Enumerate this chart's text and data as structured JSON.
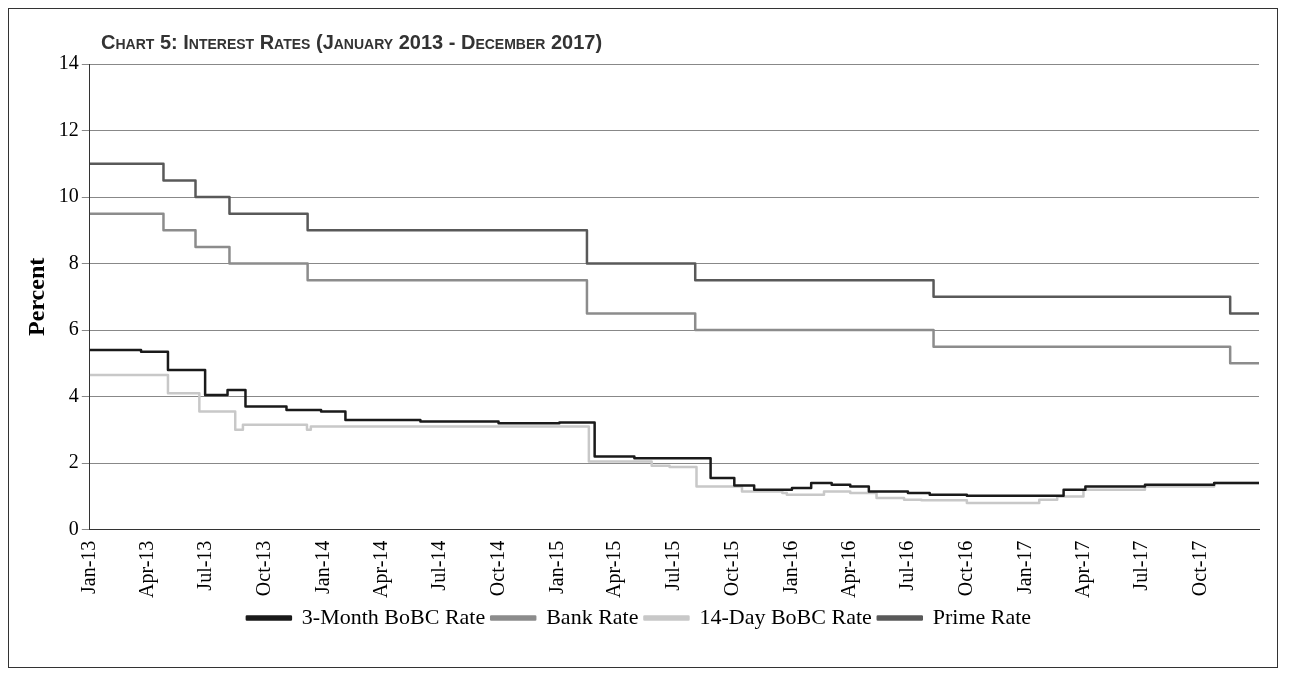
{
  "chart_data": {
    "type": "step",
    "title": "Chart 5: Interest Rates (January 2013 - December 2017)",
    "ylabel": "Percent",
    "xlim": [
      "2013-01-01",
      "2017-12-31"
    ],
    "xticks": [
      {
        "value": "2013-01-01",
        "label": "Jan-13"
      },
      {
        "value": "2013-04-01",
        "label": "Apr-13"
      },
      {
        "value": "2013-07-01",
        "label": "Jul-13"
      },
      {
        "value": "2013-10-01",
        "label": "Oct-13"
      },
      {
        "value": "2014-01-01",
        "label": "Jan-14"
      },
      {
        "value": "2014-04-01",
        "label": "Apr-14"
      },
      {
        "value": "2014-07-01",
        "label": "Jul-14"
      },
      {
        "value": "2014-10-01",
        "label": "Oct-14"
      },
      {
        "value": "2015-01-01",
        "label": "Jan-15"
      },
      {
        "value": "2015-04-01",
        "label": "Apr-15"
      },
      {
        "value": "2015-07-01",
        "label": "Jul-15"
      },
      {
        "value": "2015-10-01",
        "label": "Oct-15"
      },
      {
        "value": "2016-01-01",
        "label": "Jan-16"
      },
      {
        "value": "2016-04-01",
        "label": "Apr-16"
      },
      {
        "value": "2016-07-01",
        "label": "Jul-16"
      },
      {
        "value": "2016-10-01",
        "label": "Oct-16"
      },
      {
        "value": "2017-01-01",
        "label": "Jan-17"
      },
      {
        "value": "2017-04-01",
        "label": "Apr-17"
      },
      {
        "value": "2017-07-01",
        "label": "Jul-17"
      },
      {
        "value": "2017-10-01",
        "label": "Oct-17"
      }
    ],
    "ylim": [
      0,
      14
    ],
    "yticks": [
      0,
      2,
      4,
      6,
      8,
      10,
      12,
      14
    ],
    "grid": "y",
    "legend": "bottom",
    "series": [
      {
        "name": "3-Month BoBC Rate",
        "color": "#1a1a1a",
        "x": [
          "2013-01-01",
          "2013-03-22",
          "2013-05-03",
          "2013-06-30",
          "2013-08-04",
          "2013-09-01",
          "2013-11-04",
          "2013-12-28",
          "2014-02-04",
          "2014-06-01",
          "2014-10-01",
          "2015-01-04",
          "2015-02-28",
          "2015-05-01",
          "2015-08-28",
          "2015-10-04",
          "2015-11-04",
          "2016-01-02",
          "2016-02-01",
          "2016-03-04",
          "2016-04-02",
          "2016-05-01",
          "2016-07-01",
          "2016-08-04",
          "2016-10-01",
          "2017-03-01",
          "2017-04-04",
          "2017-07-06",
          "2017-10-22",
          "2017-12-31"
        ],
        "values": [
          5.4,
          5.35,
          4.8,
          4.05,
          4.2,
          3.7,
          3.6,
          3.55,
          3.3,
          3.25,
          3.2,
          3.22,
          2.2,
          2.15,
          1.55,
          1.33,
          1.2,
          1.25,
          1.4,
          1.35,
          1.3,
          1.15,
          1.1,
          1.05,
          1.02,
          1.2,
          1.3,
          1.35,
          1.4,
          1.4
        ]
      },
      {
        "name": "Bank Rate",
        "color": "#8c8c8c",
        "x": [
          "2013-01-01",
          "2013-04-26",
          "2013-06-15",
          "2013-08-07",
          "2013-12-07",
          "2015-02-16",
          "2015-08-04",
          "2016-08-10",
          "2017-11-16",
          "2017-12-31"
        ],
        "values": [
          9.5,
          9,
          8.5,
          8,
          7.5,
          6.5,
          6,
          5.5,
          5,
          5
        ]
      },
      {
        "name": "14-Day BoBC Rate",
        "color": "#c8c8c8",
        "x": [
          "2013-01-01",
          "2013-05-03",
          "2013-06-21",
          "2013-08-16",
          "2013-08-28",
          "2013-12-06",
          "2013-12-12",
          "2015-02-19",
          "2015-05-28",
          "2015-06-25",
          "2015-08-06",
          "2015-10-16",
          "2015-12-18",
          "2015-12-25",
          "2016-02-21",
          "2016-04-02",
          "2016-05-13",
          "2016-06-25",
          "2016-07-22",
          "2016-10-01",
          "2016-12-10",
          "2017-01-22",
          "2017-02-19",
          "2017-04-01",
          "2017-07-06",
          "2017-10-22",
          "2017-12-31"
        ],
        "values": [
          4.65,
          4.1,
          3.55,
          3.0,
          3.15,
          3.0,
          3.1,
          2.05,
          1.92,
          1.88,
          1.3,
          1.15,
          1.1,
          1.05,
          1.15,
          1.1,
          0.95,
          0.9,
          0.88,
          0.8,
          0.8,
          0.9,
          1.0,
          1.2,
          1.3,
          1.4,
          1.42
        ]
      },
      {
        "name": "Prime Rate",
        "color": "#595959",
        "x": [
          "2013-01-01",
          "2013-04-26",
          "2013-06-15",
          "2013-08-07",
          "2013-12-07",
          "2015-02-16",
          "2015-08-04",
          "2016-08-10",
          "2017-11-16",
          "2017-12-31"
        ],
        "values": [
          11,
          10.5,
          10,
          9.5,
          9,
          8,
          7.5,
          7,
          6.5,
          6.5
        ]
      }
    ]
  }
}
